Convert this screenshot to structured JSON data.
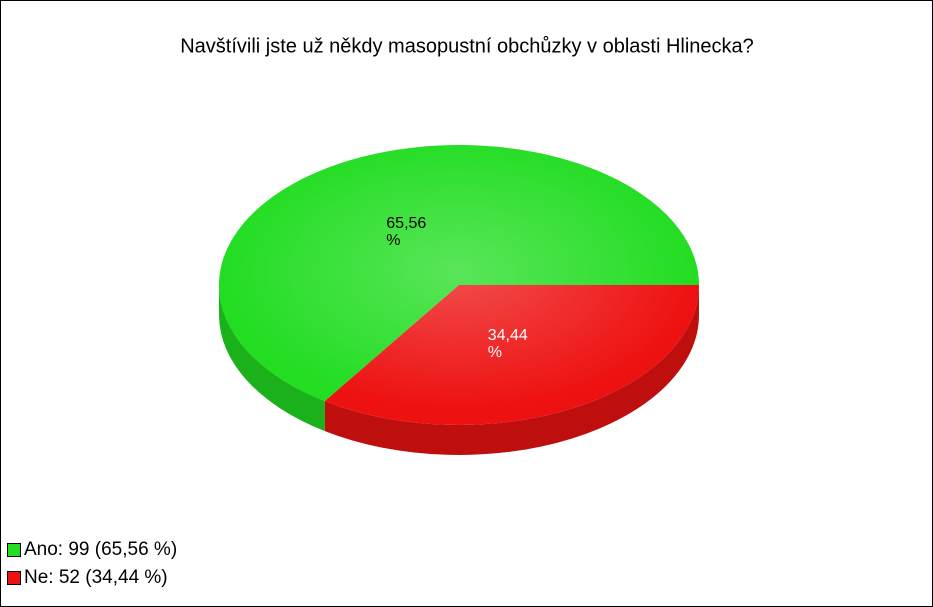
{
  "chart_data": {
    "type": "pie",
    "title": "Navštívili jste už někdy masopustní obchůzky v oblasti Hlinecka?",
    "categories": [
      "Ano: 99 (65,56 %)",
      "Ne: 52 (34,44 %)"
    ],
    "values": [
      65.56,
      34.44
    ],
    "value_labels": [
      "65,56 %",
      "34,44 %"
    ],
    "colors": [
      "#22dd22",
      "#ee1111"
    ],
    "label_colors": [
      "#000000",
      "#ffffff"
    ],
    "legend": "bottom-left"
  }
}
